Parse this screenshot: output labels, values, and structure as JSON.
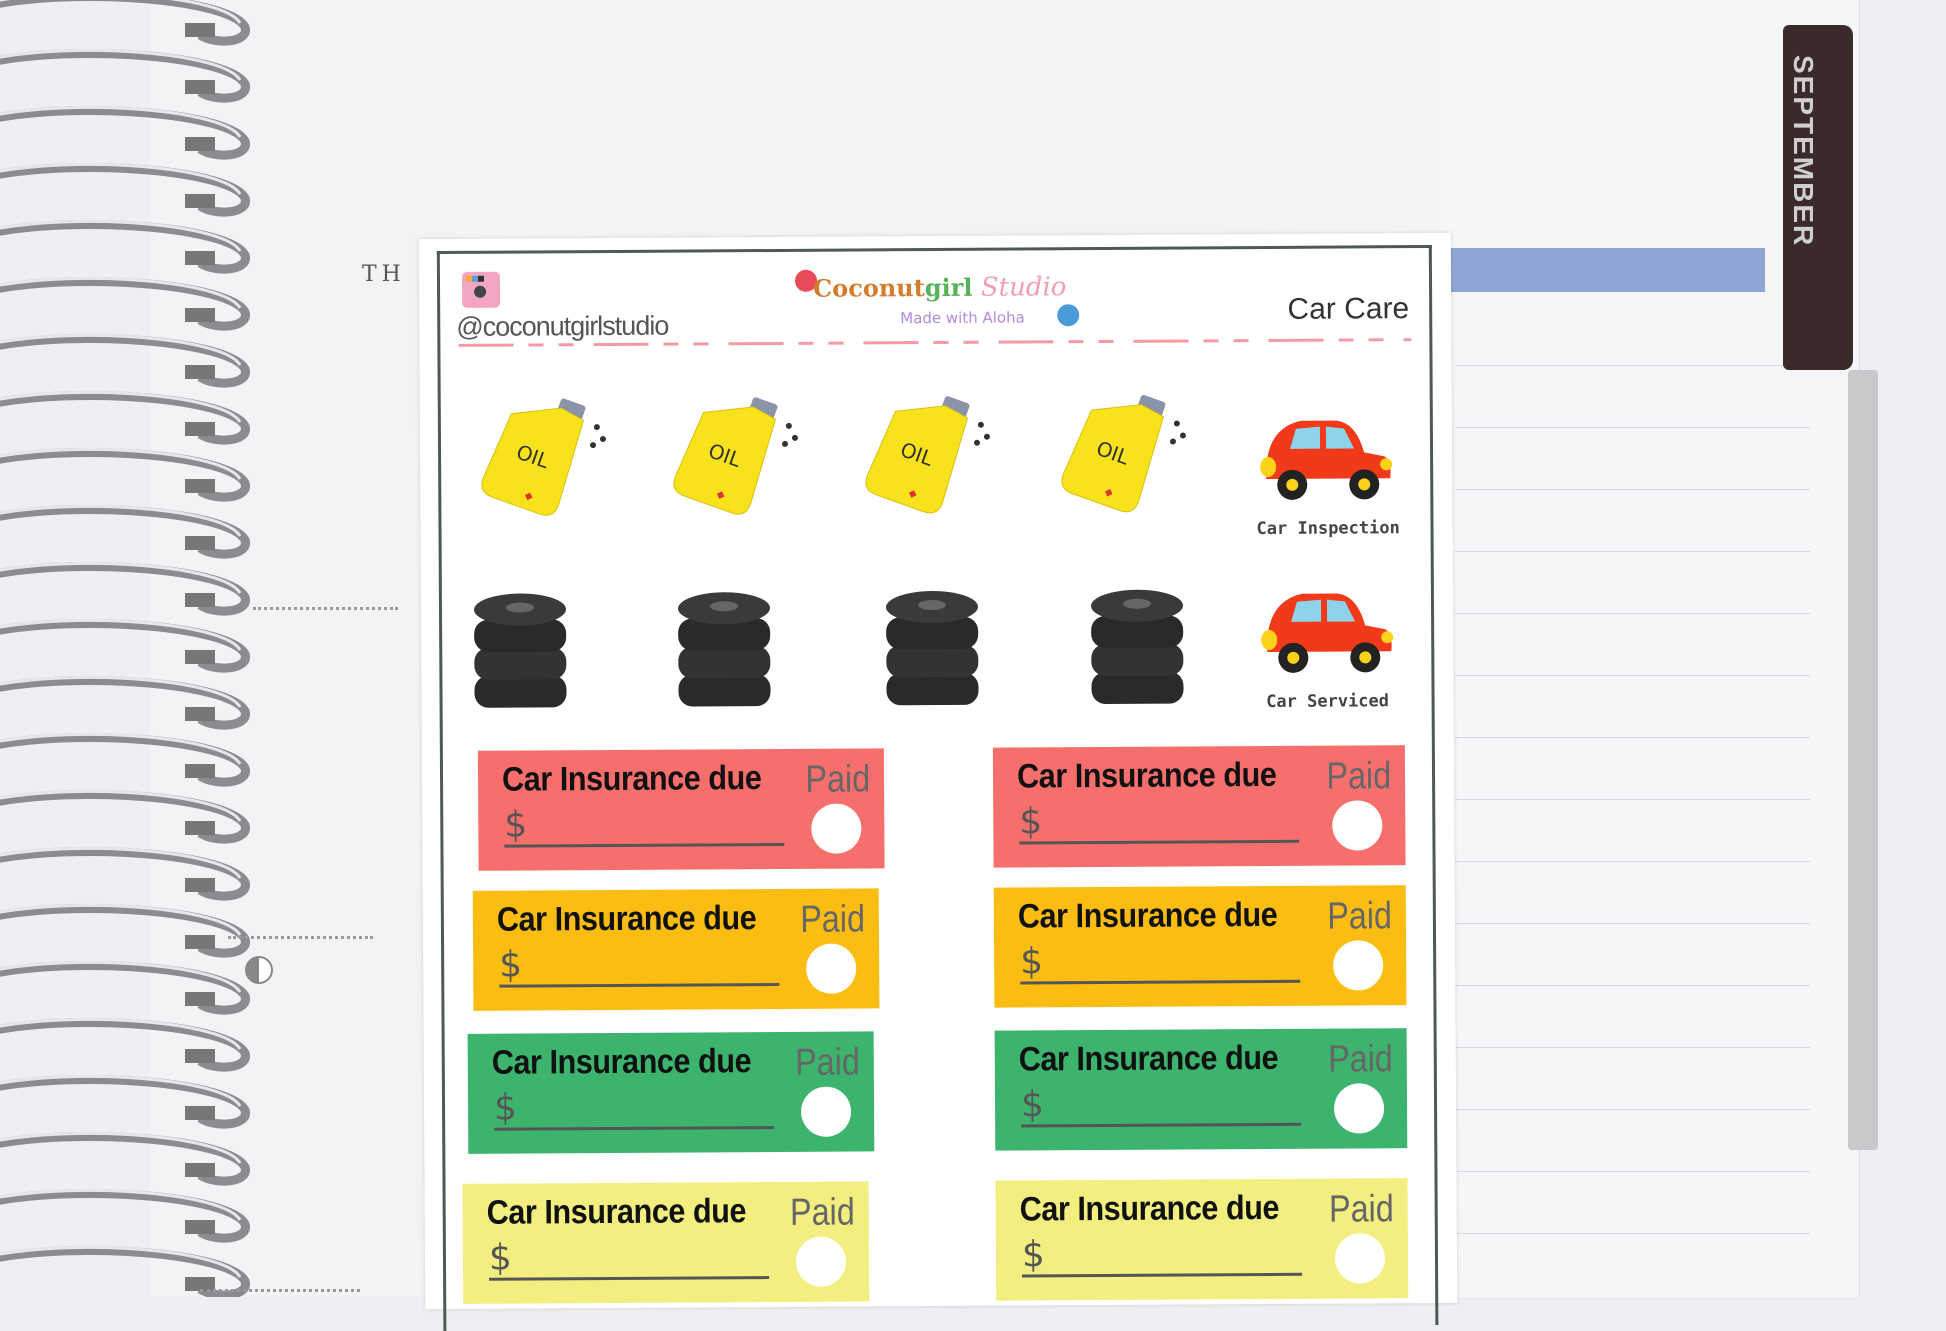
{
  "planner": {
    "day_label": "TH",
    "month_tab": "SEPTEMBER",
    "accent_bar_color": "#8fa5d5"
  },
  "sheet": {
    "handle": "@coconutgirlstudio",
    "brand": {
      "part1": "Coconut",
      "part2": "girl",
      "part3": "Studio",
      "tagline": "Made with Aloha"
    },
    "title": "Car Care",
    "oil_label": "OIL",
    "oil_count": 4,
    "tire_count": 4,
    "cars": [
      {
        "label": "Car Inspection"
      },
      {
        "label": "Car Serviced"
      }
    ],
    "insurance": {
      "title": "Car Insurance due",
      "paid": "Paid",
      "currency": "$"
    },
    "insurance_colors": [
      "#f76f6c",
      "#fbbd12",
      "#3cb46e",
      "#f2ee7f"
    ],
    "icons": [
      "instagram-camera-icon",
      "oil-bottle-icon",
      "tire-stack-icon",
      "red-car-icon",
      "paid-seal-icon",
      "moon-phase-icon"
    ]
  }
}
